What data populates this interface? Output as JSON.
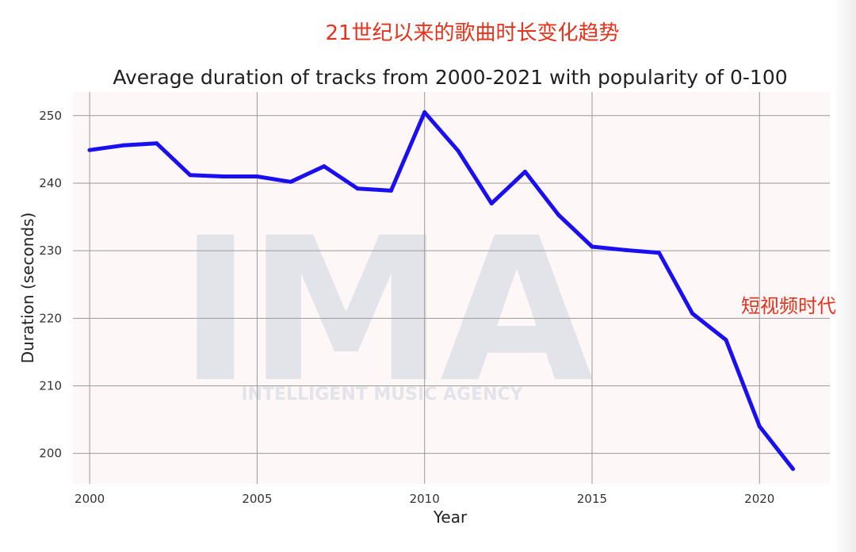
{
  "headline": "21世纪以来的歌曲时长变化趋势",
  "annotation": "短视频时代",
  "watermark": {
    "logo": "IMA",
    "tagline": "INTELLIGENT MUSIC AGENCY"
  },
  "colors": {
    "line": "#1a0ff0",
    "headline": "#e8311a",
    "annotation": "#e8311a",
    "plot_background": "#fdf7f7",
    "grid": "#9a9a9a"
  },
  "chart_data": {
    "type": "line",
    "title": "Average duration of tracks from 2000-2021 with popularity of 0-100",
    "xlabel": "Year",
    "ylabel": "Duration (seconds)",
    "xlim": [
      1999.5,
      2022.1
    ],
    "ylim": [
      195.5,
      253.5
    ],
    "xticks": [
      2000,
      2005,
      2010,
      2015,
      2020
    ],
    "yticks": [
      200,
      210,
      220,
      230,
      240,
      250
    ],
    "grid": true,
    "x": [
      2000,
      2001,
      2002,
      2003,
      2004,
      2005,
      2006,
      2007,
      2008,
      2009,
      2010,
      2011,
      2012,
      2013,
      2014,
      2015,
      2016,
      2017,
      2018,
      2019,
      2020,
      2021
    ],
    "values": [
      244.9,
      245.6,
      245.9,
      241.2,
      241.0,
      241.0,
      240.2,
      242.5,
      239.2,
      238.9,
      250.5,
      244.8,
      237.0,
      241.7,
      235.3,
      230.6,
      230.1,
      229.7,
      220.7,
      216.8,
      204.0,
      197.7
    ]
  }
}
